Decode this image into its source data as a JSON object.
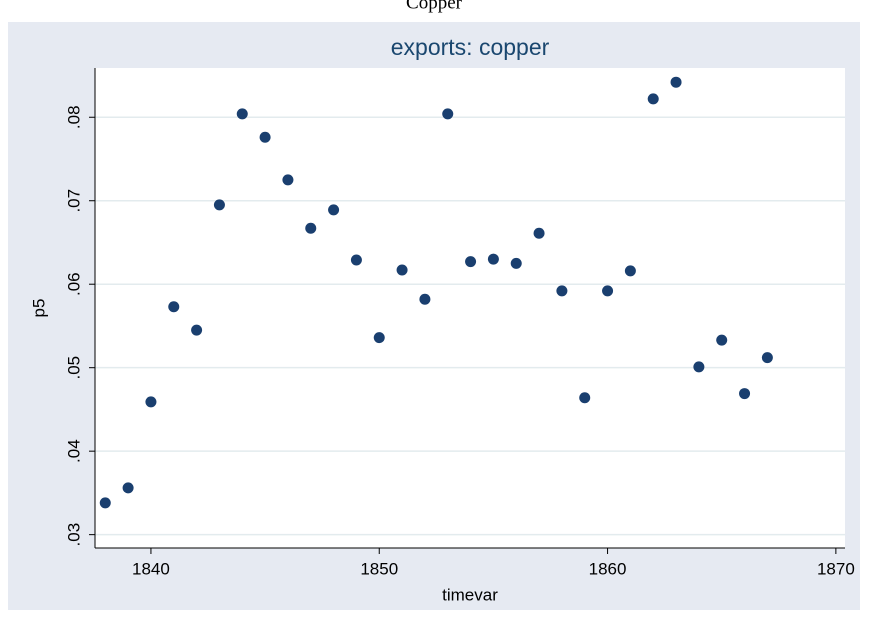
{
  "heading": "Copper",
  "chart_data": {
    "type": "scatter",
    "title": "exports: copper",
    "x_label": "timevar",
    "y_label": "p5",
    "color": "#1a3f6f",
    "grid": true,
    "x": [
      1838,
      1839,
      1840,
      1841,
      1842,
      1843,
      1844,
      1845,
      1846,
      1847,
      1848,
      1849,
      1850,
      1851,
      1852,
      1853,
      1854,
      1855,
      1856,
      1857,
      1858,
      1859,
      1860,
      1861,
      1862,
      1863,
      1864,
      1865,
      1866,
      1867
    ],
    "values": [
      0.0338,
      0.0356,
      0.0459,
      0.0573,
      0.0545,
      0.0695,
      0.0804,
      0.0776,
      0.0725,
      0.0667,
      0.0689,
      0.0629,
      0.0536,
      0.0617,
      0.0582,
      0.0804,
      0.0627,
      0.063,
      0.0625,
      0.0661,
      0.0592,
      0.0464,
      0.0592,
      0.0616,
      0.0822,
      0.0842,
      0.0501,
      0.0533,
      0.0469,
      0.0512
    ],
    "xlim": [
      1837.55,
      1870.4
    ],
    "xticks": [
      1840,
      1850,
      1860,
      1870
    ],
    "ylim": [
      0.0284,
      0.0859
    ],
    "yticks": [
      {
        "value": 0.03,
        "label": ".03"
      },
      {
        "value": 0.04,
        "label": ".04"
      },
      {
        "value": 0.05,
        "label": ".05"
      },
      {
        "value": 0.06,
        "label": ".06"
      },
      {
        "value": 0.07,
        "label": ".07"
      },
      {
        "value": 0.08,
        "label": ".08"
      }
    ]
  }
}
